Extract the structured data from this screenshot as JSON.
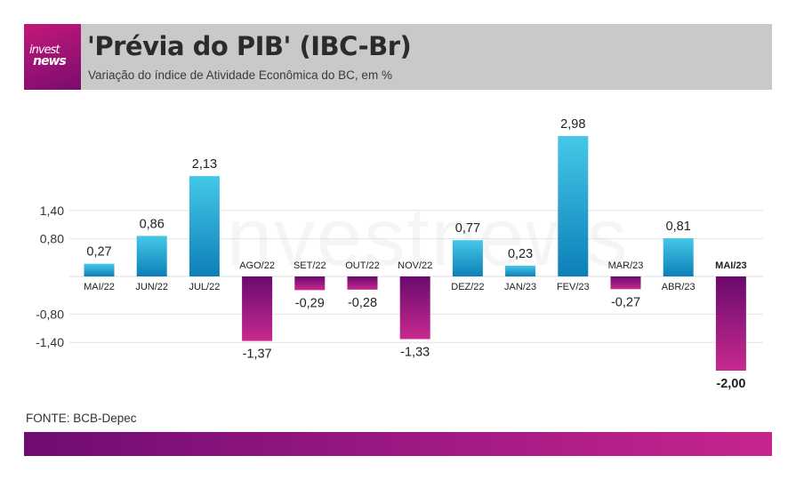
{
  "header": {
    "logo_line1": "invest",
    "logo_line2": "news",
    "title": "'Prévia do PIB' (IBC-Br)",
    "subtitle": "Variação do índice de Atividade Econômica do BC, em %"
  },
  "watermark": "investnews",
  "source": "FONTE: BCB-Depec",
  "colors": {
    "positive_top": "#45c8e8",
    "positive_bottom": "#0d7fb8",
    "negative_top": "#6a0a6e",
    "negative_bottom": "#c72a8e",
    "header_bg": "#c9c9c9"
  },
  "chart_data": {
    "type": "bar",
    "categories": [
      "MAI/22",
      "JUN/22",
      "JUL/22",
      "AGO/22",
      "SET/22",
      "OUT/22",
      "NOV/22",
      "DEZ/22",
      "JAN/23",
      "FEV/23",
      "MAR/23",
      "ABR/23",
      "MAI/23"
    ],
    "values": [
      0.27,
      0.86,
      2.13,
      -1.37,
      -0.29,
      -0.28,
      -1.33,
      0.77,
      0.23,
      2.98,
      -0.27,
      0.81,
      -2.0
    ],
    "value_labels": [
      "0,27",
      "0,86",
      "2,13",
      "-1,37",
      "-0,29",
      "-0,28",
      "-1,33",
      "0,77",
      "0,23",
      "2,98",
      "-0,27",
      "0,81",
      "-2,00"
    ],
    "highlight_index": 12,
    "yticks": [
      1.4,
      0.8,
      -0.8,
      -1.4
    ],
    "ytick_labels": [
      "1,40",
      "0,80",
      "-0,80",
      "-1,40"
    ],
    "grid": true
  }
}
